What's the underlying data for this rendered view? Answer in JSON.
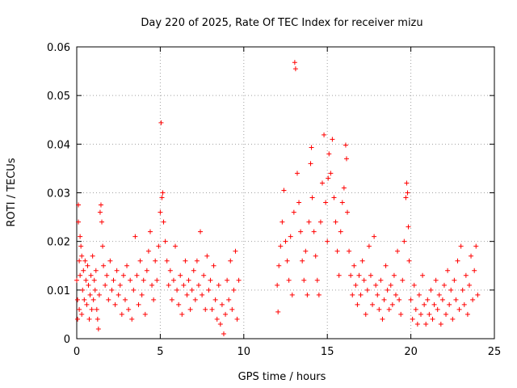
{
  "chart_data": {
    "type": "scatter",
    "title": "Day 220 of 2025, Rate Of TEC Index for receiver mizu",
    "xlabel": "GPS time / hours",
    "ylabel": "ROTI / TECUs",
    "xlim": [
      0,
      25
    ],
    "ylim": [
      0,
      0.06
    ],
    "xticks": [
      0,
      5,
      10,
      15,
      20,
      25
    ],
    "xtick_labels": [
      "0",
      "5",
      "10",
      "15",
      "20",
      "25"
    ],
    "yticks": [
      0,
      0.01,
      0.02,
      0.03,
      0.04,
      0.05,
      0.06
    ],
    "ytick_labels": [
      "0",
      "0.01",
      "0.02",
      "0.03",
      "0.04",
      "0.05",
      "0.06"
    ],
    "grid": true,
    "marker": "+",
    "color": "#ff0000",
    "series": [
      {
        "name": "ROTI",
        "points": [
          [
            0.0,
            0.012
          ],
          [
            0.05,
            0.004
          ],
          [
            0.05,
            0.008
          ],
          [
            0.1,
            0.024
          ],
          [
            0.1,
            0.0275
          ],
          [
            0.15,
            0.016
          ],
          [
            0.15,
            0.006
          ],
          [
            0.2,
            0.021
          ],
          [
            0.2,
            0.013
          ],
          [
            0.25,
            0.019
          ],
          [
            0.3,
            0.005
          ],
          [
            0.3,
            0.017
          ],
          [
            0.35,
            0.01
          ],
          [
            0.4,
            0.014
          ],
          [
            0.45,
            0.008
          ],
          [
            0.5,
            0.016
          ],
          [
            0.55,
            0.012
          ],
          [
            0.6,
            0.007
          ],
          [
            0.65,
            0.015
          ],
          [
            0.7,
            0.011
          ],
          [
            0.75,
            0.004
          ],
          [
            0.8,
            0.009
          ],
          [
            0.85,
            0.013
          ],
          [
            0.9,
            0.006
          ],
          [
            0.95,
            0.017
          ],
          [
            1.0,
            0.008
          ],
          [
            1.05,
            0.012
          ],
          [
            1.1,
            0.01
          ],
          [
            1.15,
            0.014
          ],
          [
            1.2,
            0.006
          ],
          [
            1.25,
            0.004
          ],
          [
            1.3,
            0.002
          ],
          [
            1.35,
            0.009
          ],
          [
            1.4,
            0.026
          ],
          [
            1.45,
            0.0275
          ],
          [
            1.5,
            0.024
          ],
          [
            1.55,
            0.019
          ],
          [
            1.6,
            0.015
          ],
          [
            1.7,
            0.011
          ],
          [
            1.8,
            0.013
          ],
          [
            1.9,
            0.008
          ],
          [
            2.0,
            0.016
          ],
          [
            2.1,
            0.01
          ],
          [
            2.2,
            0.012
          ],
          [
            2.3,
            0.007
          ],
          [
            2.4,
            0.014
          ],
          [
            2.5,
            0.009
          ],
          [
            2.6,
            0.011
          ],
          [
            2.7,
            0.005
          ],
          [
            2.8,
            0.013
          ],
          [
            2.9,
            0.008
          ],
          [
            3.0,
            0.015
          ],
          [
            3.1,
            0.006
          ],
          [
            3.2,
            0.012
          ],
          [
            3.3,
            0.004
          ],
          [
            3.4,
            0.01
          ],
          [
            3.5,
            0.021
          ],
          [
            3.6,
            0.013
          ],
          [
            3.7,
            0.007
          ],
          [
            3.8,
            0.016
          ],
          [
            3.9,
            0.009
          ],
          [
            4.0,
            0.012
          ],
          [
            4.1,
            0.005
          ],
          [
            4.2,
            0.014
          ],
          [
            4.3,
            0.018
          ],
          [
            4.4,
            0.022
          ],
          [
            4.5,
            0.011
          ],
          [
            4.6,
            0.008
          ],
          [
            4.7,
            0.016
          ],
          [
            4.8,
            0.012
          ],
          [
            4.9,
            0.019
          ],
          [
            5.0,
            0.026
          ],
          [
            5.05,
            0.0444
          ],
          [
            5.1,
            0.029
          ],
          [
            5.15,
            0.03
          ],
          [
            5.2,
            0.024
          ],
          [
            5.3,
            0.02
          ],
          [
            5.4,
            0.016
          ],
          [
            5.5,
            0.011
          ],
          [
            5.6,
            0.014
          ],
          [
            5.7,
            0.008
          ],
          [
            5.8,
            0.012
          ],
          [
            5.9,
            0.019
          ],
          [
            6.0,
            0.01
          ],
          [
            6.1,
            0.007
          ],
          [
            6.2,
            0.013
          ],
          [
            6.3,
            0.005
          ],
          [
            6.4,
            0.011
          ],
          [
            6.5,
            0.016
          ],
          [
            6.6,
            0.009
          ],
          [
            6.7,
            0.012
          ],
          [
            6.8,
            0.006
          ],
          [
            6.9,
            0.01
          ],
          [
            7.0,
            0.014
          ],
          [
            7.1,
            0.008
          ],
          [
            7.2,
            0.016
          ],
          [
            7.3,
            0.011
          ],
          [
            7.4,
            0.022
          ],
          [
            7.5,
            0.009
          ],
          [
            7.6,
            0.013
          ],
          [
            7.7,
            0.006
          ],
          [
            7.8,
            0.017
          ],
          [
            7.9,
            0.01
          ],
          [
            8.0,
            0.012
          ],
          [
            8.1,
            0.006
          ],
          [
            8.2,
            0.015
          ],
          [
            8.3,
            0.008
          ],
          [
            8.4,
            0.004
          ],
          [
            8.5,
            0.011
          ],
          [
            8.6,
            0.003
          ],
          [
            8.7,
            0.007
          ],
          [
            8.8,
            0.001
          ],
          [
            8.9,
            0.005
          ],
          [
            9.0,
            0.012
          ],
          [
            9.1,
            0.008
          ],
          [
            9.2,
            0.016
          ],
          [
            9.3,
            0.006
          ],
          [
            9.4,
            0.01
          ],
          [
            9.5,
            0.018
          ],
          [
            9.6,
            0.004
          ],
          [
            9.7,
            0.012
          ],
          [
            12.0,
            0.011
          ],
          [
            12.05,
            0.0055
          ],
          [
            12.1,
            0.015
          ],
          [
            12.2,
            0.019
          ],
          [
            12.3,
            0.024
          ],
          [
            12.4,
            0.0305
          ],
          [
            12.5,
            0.02
          ],
          [
            12.6,
            0.016
          ],
          [
            12.7,
            0.012
          ],
          [
            12.8,
            0.021
          ],
          [
            12.9,
            0.009
          ],
          [
            13.0,
            0.026
          ],
          [
            13.05,
            0.0568
          ],
          [
            13.1,
            0.0555
          ],
          [
            13.2,
            0.034
          ],
          [
            13.3,
            0.028
          ],
          [
            13.4,
            0.022
          ],
          [
            13.5,
            0.016
          ],
          [
            13.6,
            0.012
          ],
          [
            13.7,
            0.018
          ],
          [
            13.8,
            0.009
          ],
          [
            13.9,
            0.024
          ],
          [
            14.0,
            0.036
          ],
          [
            14.05,
            0.0393
          ],
          [
            14.1,
            0.029
          ],
          [
            14.2,
            0.022
          ],
          [
            14.3,
            0.017
          ],
          [
            14.4,
            0.012
          ],
          [
            14.5,
            0.009
          ],
          [
            14.6,
            0.024
          ],
          [
            14.7,
            0.032
          ],
          [
            14.8,
            0.0419
          ],
          [
            14.9,
            0.028
          ],
          [
            15.0,
            0.02
          ],
          [
            15.05,
            0.033
          ],
          [
            15.1,
            0.038
          ],
          [
            15.2,
            0.034
          ],
          [
            15.3,
            0.041
          ],
          [
            15.4,
            0.029
          ],
          [
            15.5,
            0.024
          ],
          [
            15.6,
            0.018
          ],
          [
            15.7,
            0.013
          ],
          [
            15.8,
            0.022
          ],
          [
            15.9,
            0.028
          ],
          [
            16.0,
            0.031
          ],
          [
            16.1,
            0.0398
          ],
          [
            16.15,
            0.037
          ],
          [
            16.2,
            0.026
          ],
          [
            16.3,
            0.018
          ],
          [
            16.4,
            0.013
          ],
          [
            16.5,
            0.009
          ],
          [
            16.6,
            0.015
          ],
          [
            16.7,
            0.011
          ],
          [
            16.8,
            0.007
          ],
          [
            16.9,
            0.013
          ],
          [
            17.0,
            0.009
          ],
          [
            17.1,
            0.016
          ],
          [
            17.2,
            0.012
          ],
          [
            17.3,
            0.005
          ],
          [
            17.4,
            0.01
          ],
          [
            17.5,
            0.019
          ],
          [
            17.6,
            0.013
          ],
          [
            17.7,
            0.007
          ],
          [
            17.8,
            0.021
          ],
          [
            17.9,
            0.011
          ],
          [
            18.0,
            0.009
          ],
          [
            18.1,
            0.006
          ],
          [
            18.2,
            0.012
          ],
          [
            18.3,
            0.004
          ],
          [
            18.4,
            0.008
          ],
          [
            18.5,
            0.015
          ],
          [
            18.6,
            0.01
          ],
          [
            18.7,
            0.006
          ],
          [
            18.8,
            0.011
          ],
          [
            18.9,
            0.007
          ],
          [
            19.0,
            0.013
          ],
          [
            19.1,
            0.009
          ],
          [
            19.2,
            0.018
          ],
          [
            19.3,
            0.008
          ],
          [
            19.4,
            0.005
          ],
          [
            19.5,
            0.012
          ],
          [
            19.6,
            0.02
          ],
          [
            19.7,
            0.029
          ],
          [
            19.75,
            0.032
          ],
          [
            19.8,
            0.03
          ],
          [
            19.85,
            0.023
          ],
          [
            19.9,
            0.016
          ],
          [
            20.0,
            0.008
          ],
          [
            20.1,
            0.004
          ],
          [
            20.2,
            0.011
          ],
          [
            20.3,
            0.006
          ],
          [
            20.4,
            0.003
          ],
          [
            20.5,
            0.009
          ],
          [
            20.6,
            0.005
          ],
          [
            20.7,
            0.013
          ],
          [
            20.8,
            0.007
          ],
          [
            20.9,
            0.003
          ],
          [
            21.0,
            0.008
          ],
          [
            21.1,
            0.005
          ],
          [
            21.2,
            0.01
          ],
          [
            21.3,
            0.004
          ],
          [
            21.4,
            0.007
          ],
          [
            21.5,
            0.012
          ],
          [
            21.6,
            0.006
          ],
          [
            21.7,
            0.009
          ],
          [
            21.8,
            0.003
          ],
          [
            21.9,
            0.008
          ],
          [
            22.0,
            0.011
          ],
          [
            22.1,
            0.005
          ],
          [
            22.2,
            0.014
          ],
          [
            22.3,
            0.007
          ],
          [
            22.4,
            0.01
          ],
          [
            22.5,
            0.004
          ],
          [
            22.6,
            0.012
          ],
          [
            22.7,
            0.008
          ],
          [
            22.8,
            0.016
          ],
          [
            22.9,
            0.006
          ],
          [
            23.0,
            0.019
          ],
          [
            23.1,
            0.01
          ],
          [
            23.2,
            0.007
          ],
          [
            23.3,
            0.013
          ],
          [
            23.4,
            0.005
          ],
          [
            23.5,
            0.011
          ],
          [
            23.6,
            0.017
          ],
          [
            23.7,
            0.008
          ],
          [
            23.8,
            0.014
          ],
          [
            23.9,
            0.019
          ],
          [
            24.0,
            0.009
          ]
        ]
      }
    ]
  }
}
